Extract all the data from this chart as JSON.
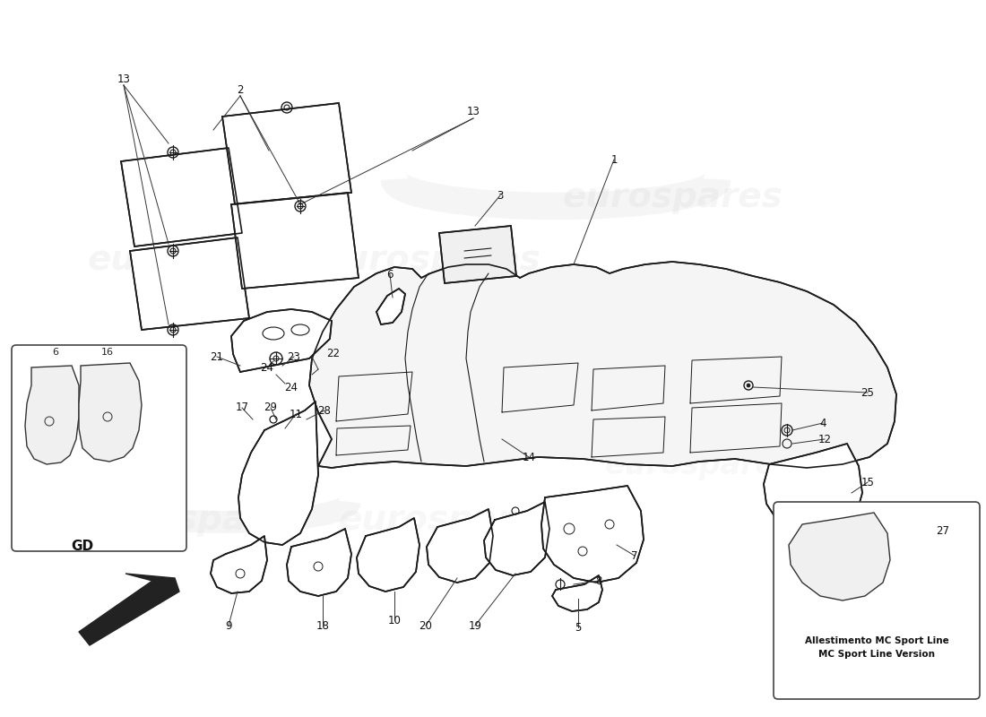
{
  "bg_color": "#ffffff",
  "line_color": "#1a1a1a",
  "watermark_color": "#cccccc",
  "watermark_text": "eurospares",
  "label_fontsize": 8.5,
  "sport_box_text1": "Allestimento MC Sport Line",
  "sport_box_text2": "MC Sport Line Version",
  "gd_label": "GD"
}
